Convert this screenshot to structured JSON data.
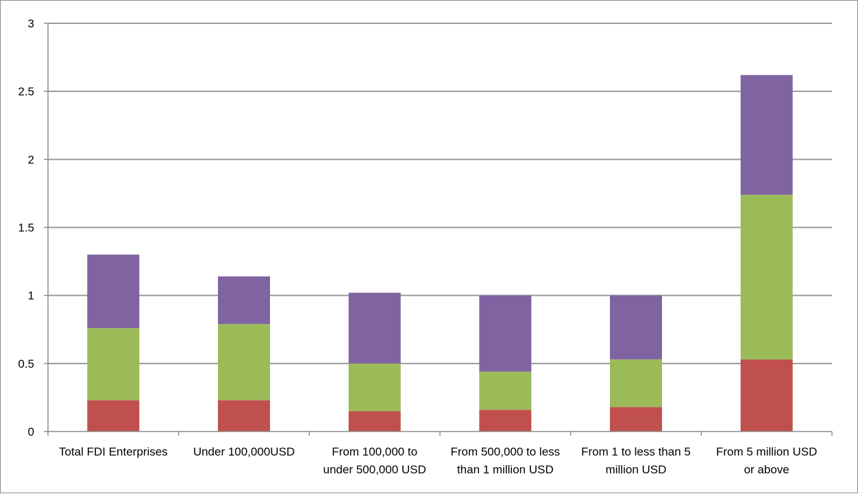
{
  "chart_data": {
    "type": "bar",
    "stacked": true,
    "title": "",
    "xlabel": "",
    "ylabel": "",
    "ylim": [
      0,
      3
    ],
    "yticks": [
      "0",
      "0.5",
      "1",
      "1.5",
      "2",
      "2.5",
      "3"
    ],
    "ytick_values": [
      0,
      0.5,
      1,
      1.5,
      2,
      2.5,
      3
    ],
    "grid": true,
    "legend": "none",
    "categories": [
      [
        "Total FDI Enterprises"
      ],
      [
        "Under 100,000USD"
      ],
      [
        "From 100,000 to",
        "under 500,000 USD"
      ],
      [
        "From 500,000 to less",
        "than 1 million USD"
      ],
      [
        "From 1 to less than 5",
        "million USD"
      ],
      [
        "From 5 million USD",
        "or above"
      ]
    ],
    "series": [
      {
        "color": "#c0504d",
        "values": [
          0.23,
          0.23,
          0.15,
          0.16,
          0.18,
          0.53
        ]
      },
      {
        "color": "#9bbb59",
        "values": [
          0.53,
          0.56,
          0.35,
          0.28,
          0.35,
          1.21
        ]
      },
      {
        "color": "#8064a2",
        "values": [
          0.54,
          0.35,
          0.52,
          0.56,
          0.47,
          0.88
        ]
      }
    ],
    "colors": {
      "grid": "#9a9a9a",
      "axis": "#8c8c8c"
    }
  }
}
